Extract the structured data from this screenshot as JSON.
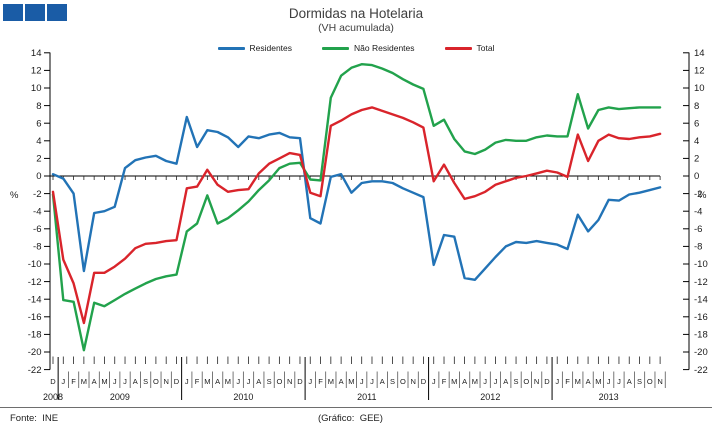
{
  "logo": {
    "square_color": "#1A5CA6",
    "square_count": 3
  },
  "footer": {
    "source": "Fonte:  INE",
    "credit": "(Gráfico:  GEE)"
  },
  "chart_data": {
    "type": "line",
    "title": "Dormidas na Hotelaria",
    "subtitle": "(VH acumulada)",
    "ylabel_left": "%",
    "ylabel_right": "%",
    "ylim": [
      -22,
      14
    ],
    "ytick_step": 2,
    "grid": false,
    "legend_position": "top",
    "x_month_labels": [
      "D",
      "J",
      "F",
      "M",
      "A",
      "M",
      "J",
      "J",
      "A",
      "S",
      "O",
      "N",
      "D",
      "J",
      "F",
      "M",
      "A",
      "M",
      "J",
      "J",
      "A",
      "S",
      "O",
      "N",
      "D",
      "J",
      "F",
      "M",
      "A",
      "M",
      "J",
      "J",
      "A",
      "S",
      "O",
      "N",
      "D",
      "J",
      "F",
      "M",
      "A",
      "M",
      "J",
      "J",
      "A",
      "S",
      "O",
      "N",
      "D",
      "J",
      "F",
      "M",
      "A",
      "M",
      "J",
      "J",
      "A",
      "S",
      "O",
      "N"
    ],
    "x_year_groups": [
      {
        "label": "2008",
        "months": 1
      },
      {
        "label": "2009",
        "months": 12
      },
      {
        "label": "2010",
        "months": 12
      },
      {
        "label": "2011",
        "months": 12
      },
      {
        "label": "2012",
        "months": 12
      },
      {
        "label": "2013",
        "months": 11
      }
    ],
    "series": [
      {
        "name": "Residentes",
        "color": "#2273B6",
        "values": [
          0.2,
          -0.3,
          -2.0,
          -10.8,
          -4.2,
          -4.0,
          -3.5,
          0.9,
          1.8,
          2.1,
          2.3,
          1.7,
          1.4,
          6.7,
          3.3,
          5.2,
          5.0,
          4.4,
          3.3,
          4.5,
          4.3,
          4.7,
          4.9,
          4.4,
          4.3,
          -4.8,
          -5.4,
          -0.1,
          0.2,
          -1.9,
          -0.8,
          -0.6,
          -0.6,
          -0.8,
          -1.4,
          -1.9,
          -2.4,
          -10.1,
          -6.7,
          -6.9,
          -11.6,
          -11.8,
          -10.5,
          -9.2,
          -8.0,
          -7.5,
          -7.6,
          -7.4,
          -7.6,
          -7.8,
          -8.3,
          -4.4,
          -6.3,
          -5.0,
          -2.7,
          -2.8,
          -2.1,
          -1.9,
          -1.6,
          -1.3
        ]
      },
      {
        "name": "Não Residentes",
        "color": "#22A24C",
        "values": [
          -2.1,
          -14.1,
          -14.3,
          -19.8,
          -14.4,
          -14.8,
          -14.1,
          -13.4,
          -12.8,
          -12.2,
          -11.7,
          -11.4,
          -11.2,
          -6.3,
          -5.4,
          -2.2,
          -5.4,
          -4.8,
          -3.9,
          -2.9,
          -1.6,
          -0.5,
          0.9,
          1.4,
          1.5,
          -0.4,
          -0.5,
          8.9,
          11.4,
          12.3,
          12.7,
          12.6,
          12.2,
          11.7,
          11.0,
          10.4,
          9.9,
          5.7,
          6.4,
          4.2,
          2.8,
          2.5,
          3.0,
          3.8,
          4.1,
          4.0,
          4.0,
          4.4,
          4.6,
          4.5,
          4.5,
          9.3,
          5.4,
          7.5,
          7.8,
          7.6,
          7.7,
          7.8,
          7.8,
          7.8
        ]
      },
      {
        "name": "Total",
        "color": "#D9242B",
        "values": [
          -1.8,
          -9.5,
          -12.2,
          -16.7,
          -11.0,
          -11.0,
          -10.3,
          -9.4,
          -8.2,
          -7.7,
          -7.6,
          -7.4,
          -7.3,
          -1.4,
          -1.2,
          0.7,
          -1.0,
          -1.8,
          -1.6,
          -1.5,
          0.3,
          1.4,
          2.0,
          2.6,
          2.4,
          -1.9,
          -2.3,
          5.7,
          6.3,
          7.0,
          7.5,
          7.8,
          7.4,
          7.0,
          6.6,
          6.1,
          5.5,
          -0.6,
          1.3,
          -0.8,
          -2.6,
          -2.3,
          -1.8,
          -1.0,
          -0.6,
          -0.2,
          0.0,
          0.3,
          0.6,
          0.4,
          -0.1,
          4.7,
          1.7,
          4.0,
          4.7,
          4.3,
          4.2,
          4.4,
          4.5,
          4.8
        ]
      }
    ]
  }
}
